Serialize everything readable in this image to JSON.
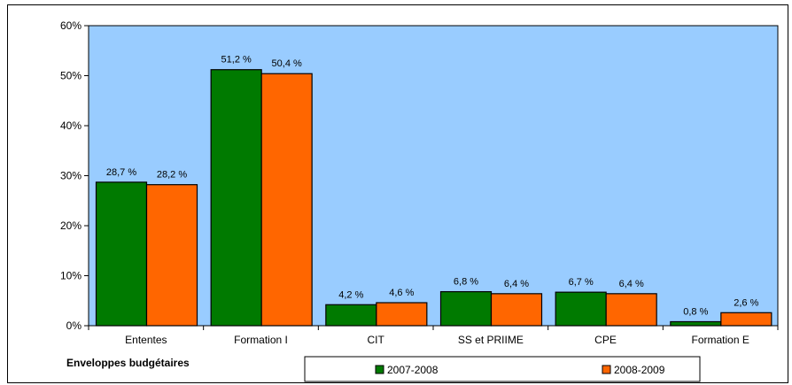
{
  "chart_data": {
    "type": "bar",
    "title": "",
    "xlabel": "Enveloppes budgétaires",
    "ylabel": "",
    "ylim": [
      0,
      60
    ],
    "y_ticks": [
      "0%",
      "10%",
      "20%",
      "30%",
      "40%",
      "50%",
      "60%"
    ],
    "categories": [
      "Ententes",
      "Formation I",
      "CIT",
      "SS et PRIIME",
      "CPE",
      "Formation E"
    ],
    "series": [
      {
        "name": "2007-2008",
        "color": "#007a00",
        "values": [
          28.7,
          51.2,
          4.2,
          6.8,
          6.7,
          0.8
        ],
        "labels": [
          "28,7 %",
          "51,2 %",
          "4,2 %",
          "6,8 %",
          "6,7 %",
          "0,8 %"
        ]
      },
      {
        "name": "2008-2009",
        "color": "#ff6600",
        "values": [
          28.2,
          50.4,
          4.6,
          6.4,
          6.4,
          2.6
        ],
        "labels": [
          "28,2 %",
          "50,4 %",
          "4,6 %",
          "6,4 %",
          "6,4 %",
          "2,6 %"
        ]
      }
    ],
    "plot_background": "#99ccff",
    "grid": false,
    "legend_position": "bottom"
  }
}
